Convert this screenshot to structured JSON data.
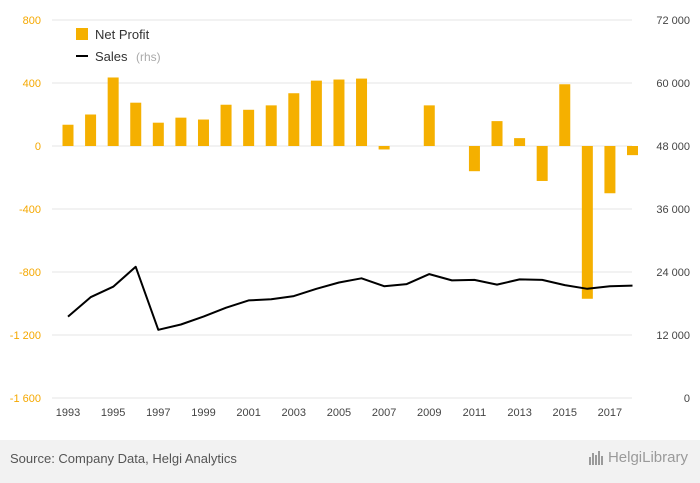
{
  "chart_data": {
    "type": "bar+line",
    "categories": [
      "1993",
      "1994",
      "1995",
      "1996",
      "1997",
      "1998",
      "1999",
      "2000",
      "2001",
      "2002",
      "2003",
      "2004",
      "2005",
      "2006",
      "2007",
      "2008",
      "2009",
      "2010",
      "2011",
      "2012",
      "2013",
      "2014",
      "2015",
      "2016",
      "2017",
      "2018"
    ],
    "x_tick_labels": [
      "1993",
      "1995",
      "1997",
      "1999",
      "2001",
      "2003",
      "2005",
      "2007",
      "2009",
      "2011",
      "2013",
      "2015",
      "2017"
    ],
    "series": [
      {
        "name": "Net Profit",
        "type": "bar",
        "axis": "left",
        "color": "#f5b000",
        "values": [
          135,
          200,
          435,
          275,
          148,
          180,
          168,
          262,
          230,
          258,
          335,
          415,
          422,
          428,
          -22,
          0,
          258,
          0,
          -160,
          158,
          50,
          -222,
          392,
          -970,
          -300,
          -58
        ]
      },
      {
        "name": "Sales",
        "type": "line",
        "axis": "right",
        "color": "#000000",
        "values": [
          15500,
          19200,
          21200,
          25000,
          13000,
          14000,
          15500,
          17200,
          18600,
          18800,
          19400,
          20800,
          22000,
          22800,
          21300,
          21700,
          23600,
          22400,
          22500,
          21600,
          22600,
          22500,
          21500,
          20800,
          21300,
          21400
        ]
      }
    ],
    "legend": [
      {
        "label": "Net Profit",
        "suffix": ""
      },
      {
        "label": "Sales",
        "suffix": "(rhs)"
      }
    ],
    "legend_position": "top-left",
    "y_left": {
      "min": -1600,
      "max": 800,
      "ticks": [
        800,
        400,
        0,
        -400,
        -800,
        -1200,
        -1600
      ],
      "labels": [
        "800",
        "400",
        "0",
        "-400",
        "-800",
        "-1 200",
        "-1 600"
      ],
      "color": "#f5a800"
    },
    "y_right": {
      "min": 0,
      "max": 72000,
      "ticks": [
        72000,
        60000,
        48000,
        36000,
        24000,
        12000,
        0
      ],
      "labels": [
        "72 000",
        "60 000",
        "48 000",
        "36 000",
        "24 000",
        "12 000",
        "0"
      ]
    },
    "grid": true
  },
  "footer": {
    "source": "Source: Company Data, Helgi Analytics",
    "brand": "HelgiLibrary"
  },
  "colors": {
    "bar": "#f5b000",
    "line": "#000000",
    "grid": "#e6e6e6",
    "footer_bg": "#f2f2f2"
  }
}
